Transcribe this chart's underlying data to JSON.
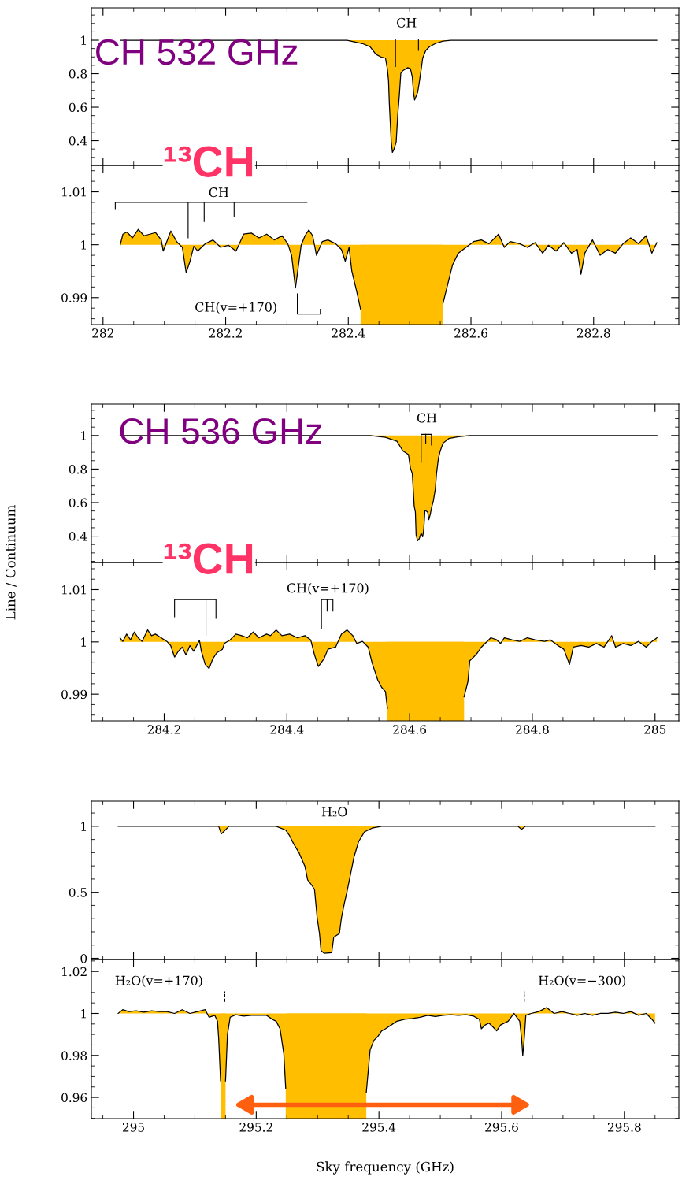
{
  "chart_data": [
    {
      "type": "area",
      "xlim": [
        281.981,
        282.939
      ],
      "xticks": [
        282,
        282.2,
        282.4,
        282.6,
        282.8
      ],
      "ylim": [
        0.252,
        1.193
      ],
      "yticks": [
        0.4,
        0.6,
        0.8,
        1
      ],
      "tick_labels": "y",
      "annotations": [
        "CH 532 GHz",
        "CH"
      ],
      "series": [
        {
          "color": "#000000",
          "x": [
            282.0281,
            282.1,
            282.2,
            282.3,
            282.3981,
            282.4231,
            282.4356,
            282.445,
            282.4544,
            282.4606,
            282.4638,
            282.4656,
            282.4669,
            282.47,
            282.4719,
            282.4744,
            282.4781,
            282.4806,
            282.4831,
            282.4856,
            282.4888,
            282.4919,
            282.4969,
            282.5013,
            282.5044,
            282.5063,
            282.5081,
            282.5106,
            282.5131,
            282.5156,
            282.5188,
            282.5213,
            282.5263,
            282.5325,
            282.5419,
            282.5544,
            282.5669,
            282.6,
            282.7,
            282.8,
            282.9031
          ],
          "values": [
            1,
            1,
            1,
            1,
            1,
            0.98,
            0.961,
            0.916,
            0.898,
            0.893,
            0.825,
            0.757,
            0.62,
            0.393,
            0.33,
            0.348,
            0.393,
            0.552,
            0.666,
            0.802,
            0.818,
            0.825,
            0.836,
            0.83,
            0.78,
            0.689,
            0.643,
            0.666,
            0.689,
            0.745,
            0.825,
            0.893,
            0.939,
            0.961,
            0.98,
            0.995,
            1,
            1,
            1,
            1,
            1
          ]
        }
      ]
    },
    {
      "type": "area",
      "xlim": [
        281.981,
        282.939
      ],
      "xticks": [
        282,
        282.2,
        282.4,
        282.6,
        282.8
      ],
      "ylim": [
        0.9849,
        1.015
      ],
      "yticks": [
        0.99,
        1,
        1.01
      ],
      "annotations": [
        "¹³CH",
        "CH",
        "CH(v=+170)"
      ],
      "bands": [
        {
          "axis": "x",
          "from": 282.42,
          "to": 282.5544,
          "color": "#ffbf00"
        }
      ],
      "series": [
        {
          "color": "#000000",
          "x": [
            282.0281,
            282.0325,
            282.0388,
            282.0481,
            282.0575,
            282.0669,
            282.0763,
            282.0856,
            282.095,
            282.0981,
            282.1106,
            282.12,
            282.1294,
            282.1356,
            282.1419,
            282.1481,
            282.1544,
            282.1669,
            282.1794,
            282.1919,
            282.2044,
            282.2169,
            282.2294,
            282.2419,
            282.2544,
            282.2669,
            282.2794,
            282.2919,
            282.3013,
            282.3075,
            282.3138,
            282.3181,
            282.3231,
            282.3294,
            282.3356,
            282.3419,
            282.3481,
            282.3575,
            282.3669,
            282.3794,
            282.3888,
            282.395,
            282.4013,
            282.4056,
            282.4138,
            282.42,
            282.4244,
            282.5494,
            282.5544,
            282.5606,
            282.57,
            282.5794,
            282.5919,
            282.6044,
            282.6169,
            282.6294,
            282.645,
            282.6544,
            282.6638,
            282.6794,
            282.6919,
            282.7044,
            282.7169,
            282.7263,
            282.7388,
            282.7513,
            282.7638,
            282.7731,
            282.7794,
            282.7856,
            282.7981,
            282.8106,
            282.8231,
            282.8356,
            282.8481,
            282.8606,
            282.8731,
            282.8856,
            282.895,
            282.9031
          ],
          "values": [
            1,
            1.002,
            1.0024,
            1.0013,
            1.0029,
            1.0017,
            1.002,
            1.0023,
            1.0009,
            0.9988,
            1.0026,
            1.0006,
            0.9995,
            0.9947,
            0.9969,
            0.9997,
            0.9988,
            1.0002,
            1.0009,
            0.9995,
            0.9999,
            0.9988,
            1.002,
            1.0022,
            1.0013,
            1.002,
            1.0009,
            1.0017,
            1.0002,
            0.998,
            0.9918,
            0.9955,
            0.9999,
            1.0017,
            1.0028,
            1.0017,
            0.998,
            1.0006,
            1.0009,
            1.0002,
            0.9991,
            0.9969,
            0.9995,
            0.9951,
            0.9911,
            0.9878,
            null,
            null,
            0.9889,
            0.9918,
            0.9962,
            0.9984,
            0.9995,
            1.0006,
            1.0009,
            1.0002,
            1.002,
            0.9995,
            1.0006,
            1.0002,
            0.9995,
            1.0004,
            0.9984,
            0.9999,
            0.9988,
            1.0004,
            0.9984,
            0.9991,
            0.9944,
            0.9984,
            1.0009,
            0.998,
            0.9991,
            0.9984,
            1.0002,
            1.0013,
            1.0002,
            1.0017,
            0.9984,
            1.0004
          ]
        }
      ]
    },
    {
      "type": "area",
      "xlim": [
        284.0813,
        285.0388
      ],
      "xticks": [
        284.2,
        284.4,
        284.6,
        284.8,
        285
      ],
      "ylim": [
        0.243,
        1.187
      ],
      "yticks": [
        0.4,
        0.6,
        0.8,
        1
      ],
      "tick_labels": "y",
      "ylabel": "Line / Continuum",
      "annotations": [
        "CH 536 GHz",
        "CH"
      ],
      "series": [
        {
          "color": "#000000",
          "x": [
            284.1281,
            284.2,
            284.3,
            284.4,
            284.5,
            284.5356,
            284.5606,
            284.5794,
            284.5888,
            284.5981,
            284.6013,
            284.6044,
            284.6075,
            284.6094,
            284.6106,
            284.6131,
            284.6156,
            284.6188,
            284.6213,
            284.6231,
            284.625,
            284.6275,
            284.6294,
            284.6313,
            284.6338,
            284.6356,
            284.6388,
            284.6419,
            284.6438,
            284.6469,
            284.65,
            284.6544,
            284.6638,
            284.6794,
            284.6981,
            284.75,
            284.85,
            284.95,
            285.0031
          ],
          "values": [
            1,
            1,
            1,
            1,
            1,
            1,
            0.989,
            0.966,
            0.909,
            0.886,
            0.806,
            0.772,
            0.578,
            0.544,
            0.407,
            0.373,
            0.384,
            0.418,
            0.396,
            0.441,
            0.555,
            0.548,
            0.544,
            0.498,
            0.532,
            0.567,
            0.612,
            0.681,
            0.772,
            0.863,
            0.909,
            0.954,
            0.982,
            0.993,
            1,
            1,
            1,
            1,
            1
          ]
        }
      ]
    },
    {
      "type": "area",
      "xlim": [
        284.0813,
        285.0388
      ],
      "xticks": [
        284.2,
        284.4,
        284.6,
        284.8,
        285
      ],
      "ylim": [
        0.9849,
        1.0152
      ],
      "yticks": [
        0.99,
        1,
        1.01
      ],
      "annotations": [
        "¹³CH",
        "CH(v=+170)"
      ],
      "bands": [
        {
          "axis": "x",
          "from": 284.5638,
          "to": 284.6888,
          "color": "#ffbf00"
        }
      ],
      "series": [
        {
          "color": "#000000",
          "x": [
            284.1281,
            284.1325,
            284.1388,
            284.145,
            284.1513,
            284.1575,
            284.1638,
            284.1731,
            284.1794,
            284.1856,
            284.195,
            284.2044,
            284.2106,
            284.2169,
            284.2231,
            284.2294,
            284.2356,
            284.2419,
            284.2481,
            284.2575,
            284.2606,
            284.2669,
            284.2731,
            284.2794,
            284.2856,
            284.295,
            284.2981,
            284.3075,
            284.3169,
            284.3263,
            284.3356,
            284.345,
            284.3544,
            284.3669,
            284.3731,
            284.3825,
            284.3919,
            284.4044,
            284.4169,
            284.4294,
            284.4388,
            284.445,
            284.4513,
            284.4606,
            284.4669,
            284.4794,
            284.4888,
            284.4981,
            284.5075,
            284.5138,
            284.5231,
            284.5325,
            284.5388,
            284.5481,
            284.5544,
            284.5606,
            284.5638,
            284.5669,
            284.6856,
            284.6888,
            284.695,
            284.6981,
            284.7044,
            284.7106,
            284.7169,
            284.7231,
            284.7325,
            284.7419,
            284.7481,
            284.7544,
            284.7669,
            284.7794,
            284.7919,
            284.8044,
            284.82,
            284.8294,
            284.8419,
            284.8513,
            284.8606,
            284.8669,
            284.8794,
            284.8919,
            284.9044,
            284.9169,
            284.9294,
            284.9356,
            284.9481,
            284.9606,
            284.9731,
            284.9856,
            284.995,
            285.0031
          ],
          "values": [
            1.0008,
            1.0001,
            1.0015,
            1.0004,
            1.0019,
            1.0008,
            1.0001,
            1.0023,
            1.0012,
            1.0015,
            1.0008,
            1.0001,
            0.9993,
            0.9971,
            0.9982,
            0.999,
            0.9975,
            0.9993,
            0.9982,
            1.0003,
            0.9982,
            0.9957,
            0.9949,
            0.9968,
            0.9979,
            0.9986,
            0.9997,
            1.0004,
            1.0015,
            1.0012,
            1.0008,
            1.0019,
            1.0008,
            1.0015,
            1.0012,
            1.0023,
            1.0012,
            1.0015,
            1.0008,
            1.0012,
            1.0004,
            0.9975,
            0.9953,
            0.9968,
            0.9986,
            0.999,
            1.0015,
            1.0023,
            1.0012,
            0.9997,
            1.0001,
            0.999,
            0.996,
            0.9927,
            0.9913,
            0.9905,
            0.9873,
            null,
            null,
            0.9895,
            0.9924,
            0.9964,
            0.9971,
            0.9979,
            0.999,
            0.9997,
            1.0008,
            1.0004,
            0.9997,
            1.0008,
            1.0004,
            1.0001,
            1.0008,
            1.0004,
            1.0001,
            1.0004,
            0.9993,
            0.9986,
            0.9957,
            0.999,
            0.9993,
            0.999,
            0.9997,
            0.999,
            1.0012,
            0.999,
            0.9997,
            0.9993,
            1.0001,
            0.999,
            1.0001,
            1.0008
          ]
        }
      ]
    },
    {
      "type": "area",
      "xlim": [
        294.9313,
        295.8888
      ],
      "xticks": [
        295,
        295.2,
        295.4,
        295.6,
        295.8
      ],
      "ylim": [
        -0.009,
        1.19
      ],
      "yticks": [
        0,
        0.5,
        1
      ],
      "tick_labels": "y",
      "annotations": [
        "H₂O"
      ],
      "series": [
        {
          "color": "#000000",
          "x": [
            294.975,
            295.05,
            295.1388,
            295.1431,
            295.1481,
            295.1556,
            295.2,
            295.2325,
            295.2481,
            295.2544,
            295.2606,
            295.27,
            295.2794,
            295.2838,
            295.2888,
            295.295,
            295.2994,
            295.3031,
            295.3056,
            295.3106,
            295.3231,
            295.3263,
            295.3356,
            295.3388,
            295.3438,
            295.3481,
            295.3544,
            295.3594,
            295.3669,
            295.3763,
            295.3888,
            295.4044,
            295.5,
            295.6263,
            295.6325,
            295.6388,
            295.7,
            295.85
          ],
          "values": [
            1,
            1,
            1,
            0.942,
            0.965,
            1,
            1,
            1,
            0.971,
            0.928,
            0.87,
            0.797,
            0.696,
            0.594,
            0.565,
            0.522,
            0.304,
            0.188,
            0.058,
            0.038,
            0.043,
            0.159,
            0.188,
            0.304,
            0.42,
            0.507,
            0.652,
            0.768,
            0.884,
            0.957,
            0.986,
            1,
            1,
            1,
            0.977,
            1,
            1,
            1
          ]
        }
      ]
    },
    {
      "type": "area",
      "xlim": [
        294.9313,
        295.8888
      ],
      "xticks": [
        295,
        295.2,
        295.4,
        295.6,
        295.8
      ],
      "ylim": [
        0.9499,
        1.0257
      ],
      "yticks": [
        0.96,
        0.98,
        1,
        1.02
      ],
      "xlabel": "Sky frequency (GHz)",
      "annotations": [
        "H₂O(v=+170)",
        "H₂O(v=−300)"
      ],
      "bands": [
        {
          "axis": "x",
          "from": 295.1419,
          "to": 295.15,
          "color": "#ffbf00"
        },
        {
          "axis": "x",
          "from": 295.2481,
          "to": 295.3794,
          "color": "#ffbf00"
        }
      ],
      "series": [
        {
          "color": "#000000",
          "x": [
            294.975,
            294.9825,
            294.9919,
            295.0044,
            295.0169,
            295.0294,
            295.0419,
            295.0544,
            295.0669,
            295.0794,
            295.0919,
            295.1044,
            295.1169,
            295.1231,
            295.1325,
            295.1369,
            295.1388,
            295.1419,
            295.145,
            295.15,
            295.1531,
            295.1575,
            295.1669,
            295.1794,
            295.1919,
            295.2044,
            295.2169,
            295.2263,
            295.2325,
            295.2388,
            295.245,
            295.2481,
            295.25,
            295.3781,
            295.3794,
            295.3856,
            295.3919,
            295.3981,
            295.4044,
            295.4106,
            295.42,
            295.4294,
            295.4419,
            295.4544,
            295.4669,
            295.4794,
            295.4919,
            295.5044,
            295.5169,
            295.5294,
            295.5419,
            295.5544,
            295.5638,
            295.5669,
            295.5731,
            295.5794,
            295.5856,
            295.5919,
            295.5981,
            295.6106,
            295.62,
            295.6294,
            295.6325,
            295.6344,
            295.6369,
            295.6394,
            295.6481,
            295.6606,
            295.6731,
            295.6856,
            295.6981,
            295.7106,
            295.7231,
            295.7356,
            295.7481,
            295.7606,
            295.7731,
            295.7856,
            295.7981,
            295.8106,
            295.8231,
            295.8356,
            295.845,
            295.85
          ],
          "values": [
            1,
            1.0018,
            1.0009,
            1.0013,
            1.0006,
            1.0013,
            1.0009,
            1.0009,
            1,
            1.0018,
            1,
            1.0009,
            1.0018,
            0.9982,
            0.9991,
            0.9963,
            0.9881,
            0.9679,
            null,
            0.9679,
            0.9899,
            0.9982,
            0.9994,
            0.9987,
            0.9991,
            0.9991,
            0.9991,
            0.9972,
            0.9963,
            0.9927,
            0.9807,
            0.9642,
            null,
            null,
            0.9624,
            0.9826,
            0.9872,
            0.989,
            0.9917,
            0.9927,
            0.9945,
            0.9963,
            0.9972,
            0.9976,
            0.9982,
            0.9991,
            0.9985,
            0.9991,
            0.9994,
            0.9991,
            0.9994,
            0.9987,
            0.9972,
            0.9927,
            0.9945,
            0.9954,
            0.9936,
            0.9917,
            0.9945,
            0.9963,
            1,
            0.9963,
            0.9881,
            0.9798,
            0.9881,
            0.9991,
            1,
            1.0009,
            1.0028,
            1,
            1.0009,
            1,
            0.9991,
            1,
            0.9991,
            1,
            1,
            1.0006,
            1,
            1.0009,
            0.9991,
            1,
            0.9972,
            0.9954
          ]
        }
      ]
    }
  ]
}
